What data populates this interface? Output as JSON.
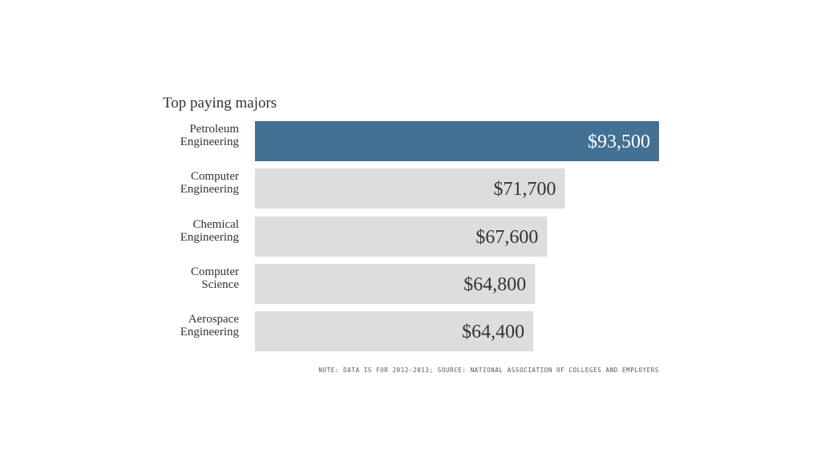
{
  "chart_data": {
    "type": "bar",
    "orientation": "horizontal",
    "title": "Top paying majors",
    "categories": [
      [
        "Petroleum",
        "Engineering"
      ],
      [
        "Computer",
        "Engineering"
      ],
      [
        "Chemical",
        "Engineering"
      ],
      [
        "Computer",
        "Science"
      ],
      [
        "Aerospace",
        "Engineering"
      ]
    ],
    "values": [
      93500,
      71700,
      67600,
      64800,
      64400
    ],
    "value_labels": [
      "$93,500",
      "$71,700",
      "$67,600",
      "$64,800",
      "$64,400"
    ],
    "xlim": [
      0,
      93500
    ],
    "highlight_index": 0,
    "colors": {
      "highlight": "#437194",
      "default": "#dddddd",
      "highlight_text": "#ffffff",
      "default_text": "#333333"
    },
    "grid": false,
    "legend": "none"
  },
  "note": "NOTE: DATA IS FOR 2012-2013; SOURCE: NATIONAL ASSOCIATION OF COLLEGES AND EMPLOYERS"
}
